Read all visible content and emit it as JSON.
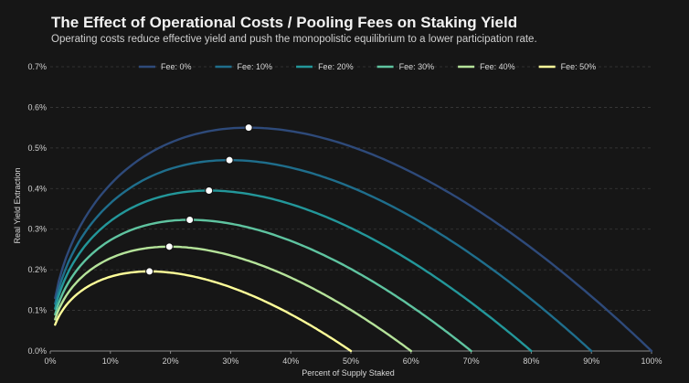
{
  "chart_data": {
    "type": "line",
    "title": "The Effect of Operational Costs / Pooling Fees on Staking Yield",
    "subtitle": "Operating costs reduce effective yield and push the monopolistic equilibrium to a lower participation rate.",
    "xlabel": "Percent of Supply Staked",
    "ylabel": "Real Yield Extraction",
    "x_ticks": [
      "0%",
      "10%",
      "20%",
      "30%",
      "40%",
      "50%",
      "60%",
      "70%",
      "80%",
      "90%",
      "100%"
    ],
    "y_ticks": [
      "0.0%",
      "0.1%",
      "0.2%",
      "0.3%",
      "0.4%",
      "0.5%",
      "0.6%",
      "0.7%"
    ],
    "xlim": [
      0,
      100
    ],
    "ylim": [
      0,
      0.7
    ],
    "x_units": "percent of supply staked",
    "y_units": "percent",
    "grid": "horizontal dashed",
    "legend_position": "top",
    "series": [
      {
        "name": "Fee: 0%",
        "color": "#2e4a7a",
        "x_end": 100,
        "peak_x": 33.0,
        "peak_y": 0.55
      },
      {
        "name": "Fee: 10%",
        "color": "#1f6e8c",
        "x_end": 90,
        "peak_x": 29.8,
        "peak_y": 0.47
      },
      {
        "name": "Fee: 20%",
        "color": "#23979a",
        "x_end": 80,
        "peak_x": 26.4,
        "peak_y": 0.395
      },
      {
        "name": "Fee: 30%",
        "color": "#5fc4a0",
        "x_end": 70,
        "peak_x": 23.2,
        "peak_y": 0.323
      },
      {
        "name": "Fee: 40%",
        "color": "#b5e39a",
        "x_end": 60,
        "peak_x": 19.8,
        "peak_y": 0.257
      },
      {
        "name": "Fee: 50%",
        "color": "#ffff99",
        "x_end": 50,
        "peak_x": 16.5,
        "peak_y": 0.196
      }
    ],
    "equilibrium_markers": "white circles at each curve's maximum"
  }
}
